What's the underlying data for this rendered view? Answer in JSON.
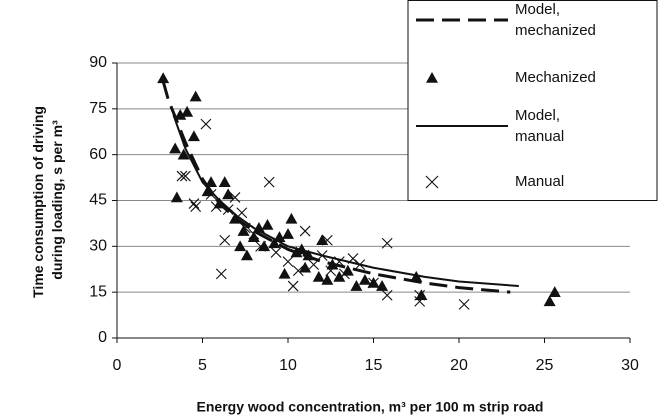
{
  "chart_data": {
    "type": "scatter",
    "xlabel": "Energy wood concentration, m³ per 100 m strip road",
    "ylabel": [
      "Time consumption of driving",
      "during loading, s per m³"
    ],
    "xlim": [
      0,
      30
    ],
    "xticks": [
      0,
      5,
      10,
      15,
      20,
      25,
      30
    ],
    "ylim": [
      0,
      90
    ],
    "yticks": [
      0,
      15,
      30,
      45,
      60,
      75,
      90
    ],
    "grid": true,
    "legend": "upper right",
    "series": [
      {
        "name": [
          "Model,",
          "mechanized"
        ],
        "color": "#111111",
        "style": "dashed",
        "x": [
          2.7,
          3,
          4,
          5,
          6,
          7,
          8,
          10,
          12,
          15,
          18,
          20,
          23
        ],
        "values": [
          84,
          78,
          64,
          52,
          44,
          39,
          35,
          29,
          25,
          21,
          18,
          16.5,
          15
        ]
      },
      {
        "name": [
          "Mechanized"
        ],
        "color": "#111111",
        "marker": "triangle",
        "x": [
          2.7,
          3.4,
          3.5,
          3.7,
          3.9,
          4.1,
          4.5,
          4.6,
          5.3,
          5.5,
          6,
          6.3,
          6.5,
          6.9,
          7.2,
          7.4,
          7.6,
          8,
          8.3,
          8.6,
          8.8,
          9.2,
          9.5,
          9.8,
          10,
          10.2,
          10.5,
          10.8,
          11,
          11.2,
          11.8,
          12,
          12.3,
          12.6,
          13,
          13.5,
          14,
          14.5,
          15,
          15.5,
          17.5,
          17.8,
          25.3,
          25.6
        ],
        "values": [
          85,
          62,
          46,
          73,
          60,
          74,
          66,
          79,
          48,
          51,
          44,
          51,
          47,
          39,
          30,
          35,
          27,
          33,
          36,
          30,
          37,
          31,
          33,
          21,
          34,
          39,
          28,
          29,
          23,
          27,
          20,
          32,
          19,
          24,
          20,
          22,
          17,
          19,
          18,
          17,
          20,
          14,
          12,
          15
        ]
      },
      {
        "name": [
          "Model,",
          "manual"
        ],
        "color": "#111111",
        "style": "solid",
        "x": [
          3.3,
          4,
          5,
          6,
          7,
          8,
          10,
          12,
          15,
          18,
          20,
          23.5
        ],
        "values": [
          73,
          62,
          51,
          45,
          40,
          36,
          30,
          27,
          23,
          20,
          18.5,
          17
        ]
      },
      {
        "name": [
          "Manual"
        ],
        "color": "#111111",
        "marker": "cross",
        "x": [
          3.8,
          4,
          4.5,
          4.6,
          5.2,
          5.5,
          5.8,
          6.1,
          6.3,
          6.5,
          6.9,
          7.3,
          7.5,
          8,
          8.4,
          8.9,
          9.3,
          10,
          10.3,
          10.6,
          11,
          11.5,
          12,
          12.3,
          12.5,
          13,
          13.3,
          13.8,
          14.2,
          15,
          15.8,
          15.8,
          17.7,
          17.7,
          20.3
        ],
        "values": [
          53,
          53,
          44,
          43,
          70,
          47,
          43,
          21,
          32,
          42,
          46,
          41,
          36,
          34,
          30,
          51,
          28,
          25,
          17,
          22,
          35,
          24,
          27,
          32,
          22,
          25,
          21,
          26,
          24,
          18,
          31,
          14,
          14,
          12,
          11
        ]
      }
    ]
  }
}
